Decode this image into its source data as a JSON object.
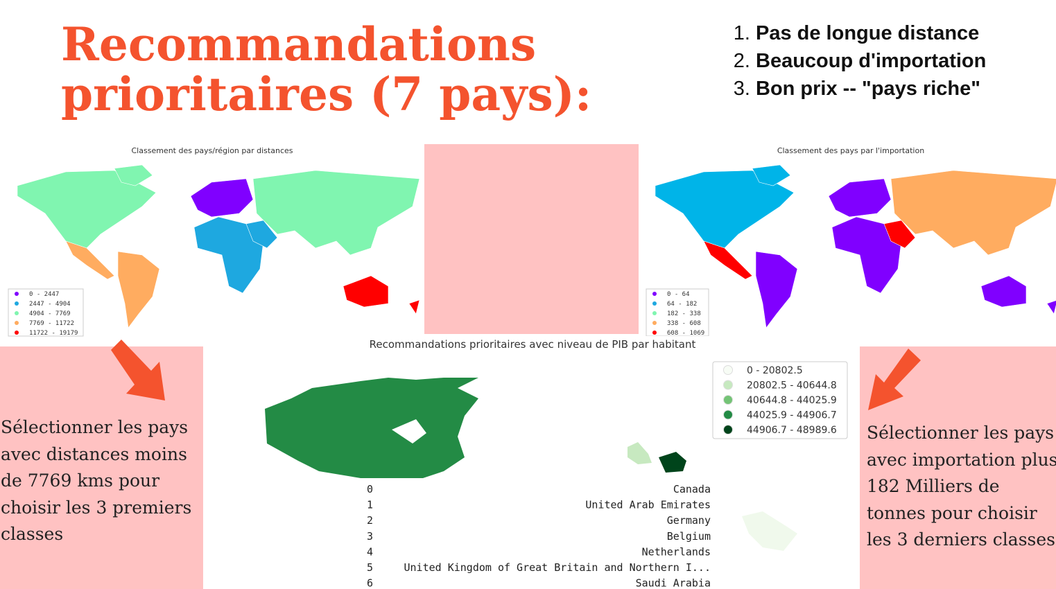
{
  "title": "Recommandations prioritaires (7 pays):",
  "criteria": [
    "Pas de longue distance",
    "Beaucoup d'importation",
    "Bon prix -- \"pays riche\""
  ],
  "map_left": {
    "title": "Classement des pays/région par distances",
    "legend": [
      {
        "label": "0 - 2447",
        "color": "#8000ff"
      },
      {
        "label": "2447 - 4904",
        "color": "#1ea8e0"
      },
      {
        "label": "4904 - 7769",
        "color": "#80f5b0"
      },
      {
        "label": "7769 - 11722",
        "color": "#ffac60"
      },
      {
        "label": "11722 - 19179",
        "color": "#ff0000"
      }
    ]
  },
  "map_right": {
    "title": "Classement des pays par l'importation",
    "legend": [
      {
        "label": "0 - 64",
        "color": "#8000ff"
      },
      {
        "label": "64 - 182",
        "color": "#1ea8e0"
      },
      {
        "label": "182 - 338",
        "color": "#80f5b0"
      },
      {
        "label": "338 - 608",
        "color": "#ffac60"
      },
      {
        "label": "608 - 1069",
        "color": "#ff0000"
      }
    ]
  },
  "note_left": "Sélectionner les pays avec distances moins de 7769 kms pour choisir les 3 premiers classes",
  "note_right": "Sélectionner les pays avec importation plus 182 Milliers de tonnes pour choisir les 3 derniers classes",
  "center": {
    "title": "Recommandations prioritaires avec niveau de PIB par habitant",
    "legend": [
      {
        "label": "0 - 20802.5",
        "color": "#f7fcf5"
      },
      {
        "label": "20802.5 - 40644.8",
        "color": "#c7e9c0"
      },
      {
        "label": "40644.8 - 44025.9",
        "color": "#74c476"
      },
      {
        "label": "44025.9 - 44906.7",
        "color": "#238b45"
      },
      {
        "label": "44906.7 - 48989.6",
        "color": "#00441b"
      }
    ],
    "rows": [
      [
        "0",
        "Canada"
      ],
      [
        "1",
        "United Arab Emirates"
      ],
      [
        "2",
        "Germany"
      ],
      [
        "3",
        "Belgium"
      ],
      [
        "4",
        "Netherlands"
      ],
      [
        "5",
        "United Kingdom of Great Britain and Northern I..."
      ],
      [
        "6",
        "Saudi Arabia"
      ]
    ]
  }
}
